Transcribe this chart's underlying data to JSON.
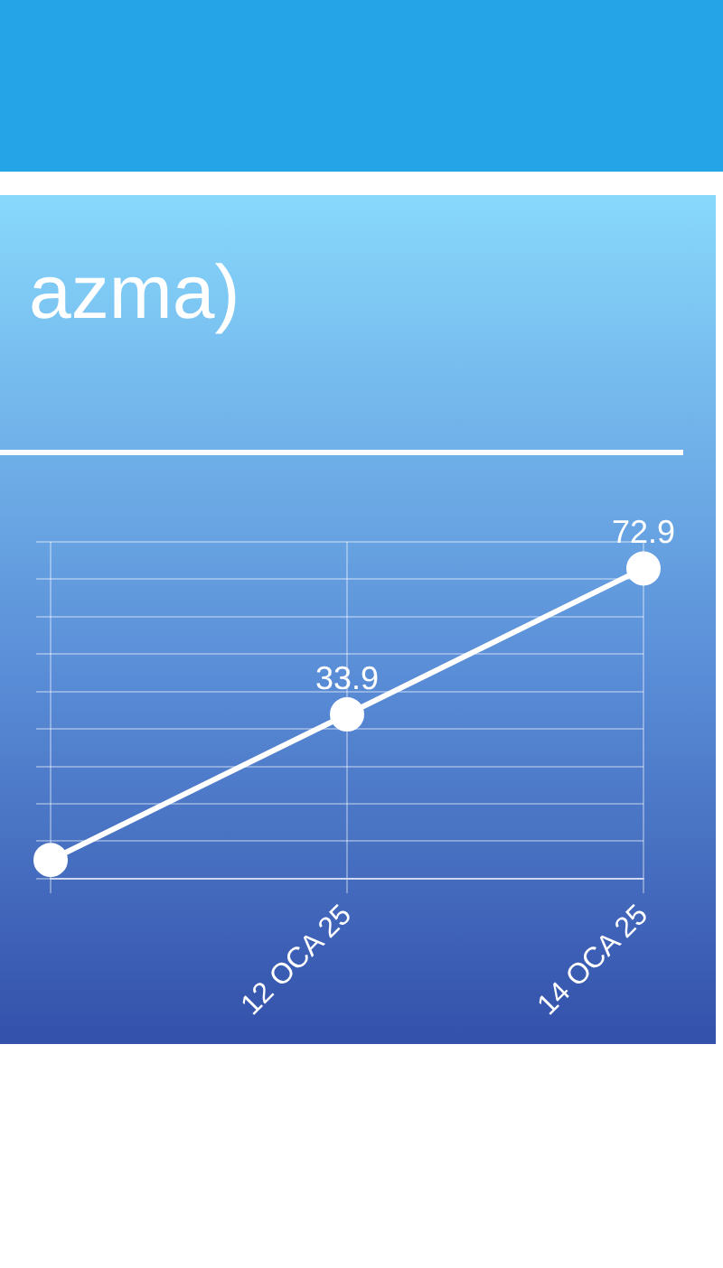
{
  "chart_data": {
    "type": "line",
    "title": "azma)",
    "categories": [
      null,
      "12 OCA 25",
      "14 OCA 25"
    ],
    "series": [
      {
        "color": "#ffffff",
        "values": [
          -5,
          33.9,
          72.9
        ],
        "value_labels": [
          null,
          "33.9",
          "72.9"
        ]
      }
    ],
    "grid": true,
    "marker": "circle",
    "line_style": "solid",
    "legend": false
  }
}
